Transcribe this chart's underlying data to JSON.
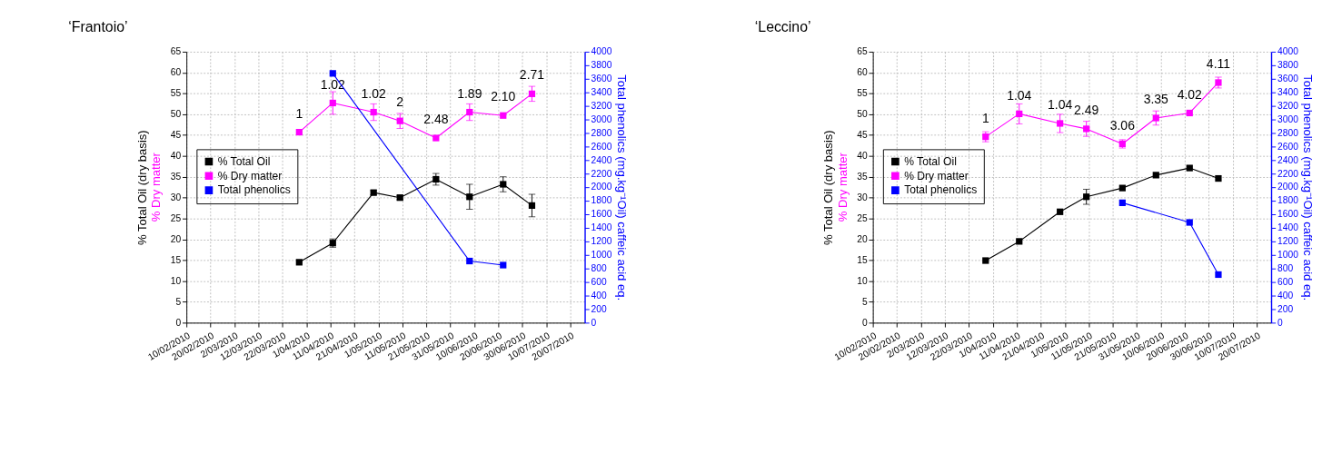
{
  "chart_data": [
    {
      "type": "line",
      "title": "‘Frantoio’",
      "ylabel": "% Total Oil (dry basis)",
      "y2label": "Total phenolics (mg.kg⁻¹Oil) caffeic acid eq.",
      "x": [
        "2010-03-29",
        "2010-04-12",
        "2010-04-29",
        "2010-05-10",
        "2010-05-25",
        "2010-06-08",
        "2010-06-22",
        "2010-07-04"
      ],
      "xlim": [
        "2010-02-10",
        "2010-07-26"
      ],
      "xticks": [
        {
          "value": "2010-02-10",
          "label": "10/02/2010"
        },
        {
          "value": "2010-02-20",
          "label": "20/02/2010"
        },
        {
          "value": "2010-03-02",
          "label": "2/03/2010"
        },
        {
          "value": "2010-03-12",
          "label": "12/03/2010"
        },
        {
          "value": "2010-03-22",
          "label": "22/03/2010"
        },
        {
          "value": "2010-04-01",
          "label": "1/04/2010"
        },
        {
          "value": "2010-04-11",
          "label": "11/04/2010"
        },
        {
          "value": "2010-04-21",
          "label": "21/04/2010"
        },
        {
          "value": "2010-05-01",
          "label": "1/05/2010"
        },
        {
          "value": "2010-05-11",
          "label": "11/05/2010"
        },
        {
          "value": "2010-05-21",
          "label": "21/05/2010"
        },
        {
          "value": "2010-05-31",
          "label": "31/05/2010"
        },
        {
          "value": "2010-06-10",
          "label": "10/06/2010"
        },
        {
          "value": "2010-06-20",
          "label": "20/06/2010"
        },
        {
          "value": "2010-06-30",
          "label": "30/06/2010"
        },
        {
          "value": "2010-07-10",
          "label": "10/07/2010"
        },
        {
          "value": "2010-07-20",
          "label": "20/07/2010"
        }
      ],
      "ylim": [
        0,
        65
      ],
      "yticks": [
        0,
        5,
        10,
        15,
        20,
        25,
        30,
        35,
        40,
        45,
        50,
        55,
        60,
        65
      ],
      "y2lim": [
        0,
        4000
      ],
      "y2ticks": [
        0,
        200,
        400,
        600,
        800,
        1000,
        1200,
        1400,
        1600,
        1800,
        2000,
        2200,
        2400,
        2600,
        2800,
        3000,
        3200,
        3400,
        3600,
        3800,
        4000
      ],
      "grid": true,
      "legend": "left",
      "marker": "square",
      "series": [
        {
          "name": "% Total Oil",
          "color": "#000000",
          "values": [
            14.5,
            19.1,
            31.2,
            30.0,
            34.4,
            30.2,
            33.2,
            28.1
          ],
          "errors": [
            null,
            1.0,
            0.5,
            0.5,
            1.4,
            3.0,
            1.8,
            2.7
          ]
        },
        {
          "name": "% Dry matter",
          "color": "#ff00ff",
          "values": [
            45.7,
            52.7,
            50.5,
            48.4,
            44.3,
            50.5,
            49.7,
            54.9
          ],
          "errors": [
            null,
            2.7,
            2.0,
            1.8,
            null,
            2.0,
            null,
            1.8
          ]
        },
        {
          "name": "Total phenolics",
          "color": "#0000ff",
          "axis": "y2",
          "x": [
            "2010-04-12",
            "2010-06-08",
            "2010-06-22"
          ],
          "values": [
            3680,
            910,
            850
          ]
        }
      ],
      "annotations": [
        "% Dry matter",
        "1",
        "1.02",
        "1.02",
        "2",
        "2.48",
        "1.89",
        "2.10",
        "2.71"
      ]
    },
    {
      "type": "line",
      "title": "‘Leccino’",
      "ylabel": "% Total Oil (dry basis)",
      "y2label": "Total phenolics (mg.kg⁻¹Oil) caffeic acid eq.",
      "x": [
        "2010-03-29",
        "2010-04-12",
        "2010-04-29",
        "2010-05-10",
        "2010-05-25",
        "2010-06-08",
        "2010-06-22",
        "2010-07-04"
      ],
      "xlim": [
        "2010-02-10",
        "2010-07-26"
      ],
      "xticks": [
        {
          "value": "2010-02-10",
          "label": "10/02/2010"
        },
        {
          "value": "2010-02-20",
          "label": "20/02/2010"
        },
        {
          "value": "2010-03-02",
          "label": "2/03/2010"
        },
        {
          "value": "2010-03-12",
          "label": "12/03/2010"
        },
        {
          "value": "2010-03-22",
          "label": "22/03/2010"
        },
        {
          "value": "2010-04-01",
          "label": "1/04/2010"
        },
        {
          "value": "2010-04-11",
          "label": "11/04/2010"
        },
        {
          "value": "2010-04-21",
          "label": "21/04/2010"
        },
        {
          "value": "2010-05-01",
          "label": "1/05/2010"
        },
        {
          "value": "2010-05-11",
          "label": "11/05/2010"
        },
        {
          "value": "2010-05-21",
          "label": "21/05/2010"
        },
        {
          "value": "2010-05-31",
          "label": "31/05/2010"
        },
        {
          "value": "2010-06-10",
          "label": "10/06/2010"
        },
        {
          "value": "2010-06-20",
          "label": "20/06/2010"
        },
        {
          "value": "2010-06-30",
          "label": "30/06/2010"
        },
        {
          "value": "2010-07-10",
          "label": "10/07/2010"
        },
        {
          "value": "2010-07-20",
          "label": "20/07/2010"
        }
      ],
      "ylim": [
        0,
        65
      ],
      "yticks": [
        0,
        5,
        10,
        15,
        20,
        25,
        30,
        35,
        40,
        45,
        50,
        55,
        60,
        65
      ],
      "y2lim": [
        0,
        4000
      ],
      "y2ticks": [
        0,
        200,
        400,
        600,
        800,
        1000,
        1200,
        1400,
        1600,
        1800,
        2000,
        2200,
        2400,
        2600,
        2800,
        3000,
        3200,
        3400,
        3600,
        3800,
        4000
      ],
      "grid": true,
      "legend": "left",
      "marker": "square",
      "series": [
        {
          "name": "% Total Oil",
          "color": "#000000",
          "values": [
            14.9,
            19.5,
            26.6,
            30.2,
            32.3,
            35.4,
            37.1,
            34.6
          ],
          "errors": [
            null,
            null,
            null,
            1.8,
            null,
            null,
            null,
            null
          ]
        },
        {
          "name": "% Dry matter",
          "color": "#ff00ff",
          "values": [
            44.6,
            50.1,
            47.8,
            46.5,
            42.9,
            49.1,
            50.3,
            57.6
          ],
          "errors": [
            1.2,
            2.4,
            2.2,
            1.8,
            1.0,
            1.7,
            null,
            1.3
          ]
        },
        {
          "name": "Total phenolics",
          "color": "#0000ff",
          "axis": "y2",
          "x": [
            "2010-05-25",
            "2010-06-22",
            "2010-07-04"
          ],
          "values": [
            1770,
            1480,
            710
          ]
        }
      ],
      "annotations": [
        "% Dry matter",
        "1",
        "1.04",
        "1.04",
        "2.49",
        "3.06",
        "3.35",
        "4.02",
        "4.11"
      ]
    }
  ]
}
